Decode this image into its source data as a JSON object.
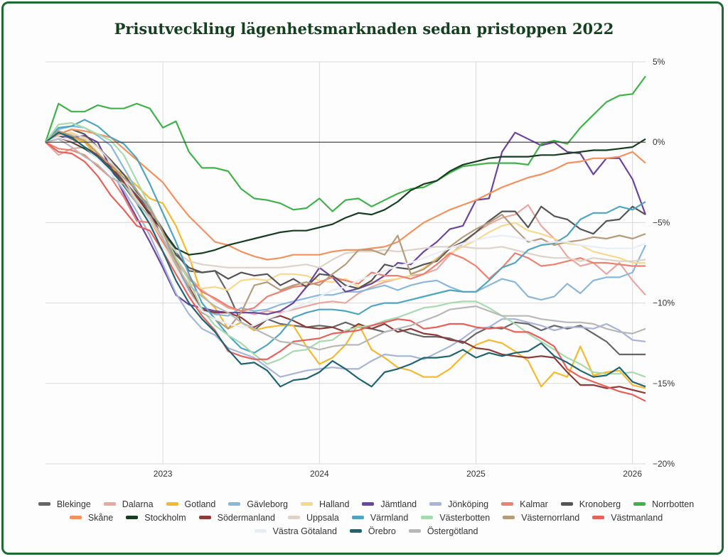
{
  "title": "Prisutveckling lägenhetsmarknaden sedan pristoppen 2022",
  "colors": {
    "frame": "#1e6b32",
    "title": "#14401f",
    "zeroline": "#333333",
    "grid": "#d9d9d9"
  },
  "chart_data": {
    "type": "line",
    "title": "Prisutveckling lägenhetsmarknaden sedan pristoppen 2022",
    "xlabel": "",
    "ylabel": "",
    "x_start": "2022-04",
    "x_end": "2026-02",
    "x_step": "month",
    "x_ticks": [
      "2023",
      "2024",
      "2025",
      "2026"
    ],
    "y_ticks": [
      "5%",
      "0%",
      "−5%",
      "−10%",
      "−15%",
      "−20%"
    ],
    "ylim": [
      -20,
      5
    ],
    "y_axis_side": "right",
    "grid": true,
    "legend_position": "bottom",
    "series": [
      {
        "name": "Blekinge",
        "color": "#666666",
        "values": [
          0,
          0.6,
          0.2,
          -0.3,
          -0.8,
          -1.5,
          -2.4,
          -3.3,
          -4.2,
          -5.4,
          -6.8,
          -8.0,
          -8.1,
          -8.0,
          -9.4,
          -11.2,
          -11.7,
          -11.0,
          -11.3,
          -11.4,
          -11.5,
          -11.4,
          -11.5,
          -11.2,
          -11.5,
          -11.6,
          -11.8,
          -11.6,
          -11.9,
          -12.1,
          -12.1,
          -12.2,
          -12.5,
          -11.9,
          -11.5,
          -11.6,
          -11.2,
          -11.3,
          -11.7,
          -11.4,
          -11.6,
          -11.4,
          -11.9,
          -12.4,
          -13.2,
          -13.2,
          -13.2
        ]
      },
      {
        "name": "Dalarna",
        "color": "#e8a8a0",
        "values": [
          0,
          -0.8,
          -0.4,
          -0.3,
          -0.8,
          -1.4,
          -2.2,
          -3.0,
          -4.2,
          -5.6,
          -7.2,
          -8.4,
          -9.2,
          -9.8,
          -10.3,
          -10.5,
          -10.7,
          -10.5,
          -10.6,
          -10.4,
          -10.2,
          -10.0,
          -9.9,
          -10.0,
          -9.4,
          -9.0,
          -8.7,
          -8.5,
          -8.3,
          -8.2,
          -7.9,
          -7.0,
          -6.3,
          -5.6,
          -5.1,
          -4.7,
          -4.5,
          -3.9,
          -5.2,
          -6.0,
          -7.1,
          -7.7,
          -7.5,
          -8.2,
          -7.5,
          -8.6,
          -9.5
        ]
      },
      {
        "name": "Gotland",
        "color": "#f5b82e",
        "values": [
          0,
          0.5,
          0.3,
          0.0,
          -0.9,
          -1.6,
          -2.0,
          -2.7,
          -3.5,
          -3.8,
          -5.2,
          -7.1,
          -9.5,
          -10.3,
          -11.6,
          -11.2,
          -11.7,
          -11.5,
          -11.4,
          -11.4,
          -12.7,
          -13.8,
          -13.4,
          -12.6,
          -11.3,
          -12.9,
          -13.4,
          -14.0,
          -14.2,
          -14.6,
          -14.6,
          -14.1,
          -13.3,
          -12.6,
          -12.3,
          -12.5,
          -13.0,
          -13.6,
          -15.2,
          -14.3,
          -14.6,
          -12.7,
          -14.5,
          -14.3,
          -14.2,
          -15.1,
          -15.3
        ]
      },
      {
        "name": "Gävleborg",
        "color": "#88b8dc",
        "values": [
          0,
          0.8,
          1.0,
          0.9,
          0.4,
          -0.2,
          -1.6,
          -3.0,
          -4.2,
          -5.6,
          -7.6,
          -9.2,
          -10.4,
          -10.7,
          -10.8,
          -10.3,
          -10.5,
          -10.4,
          -10.1,
          -9.9,
          -9.7,
          -9.5,
          -9.5,
          -9.3,
          -9.3,
          -9.1,
          -8.9,
          -9.2,
          -8.9,
          -8.7,
          -8.6,
          -9.0,
          -9.3,
          -9.3,
          -8.9,
          -8.5,
          -8.7,
          -9.6,
          -9.8,
          -9.6,
          -8.8,
          -9.4,
          -8.6,
          -8.4,
          -8.4,
          -8.1,
          -6.4
        ]
      },
      {
        "name": "Halland",
        "color": "#f7d98c",
        "values": [
          0,
          0.4,
          0.6,
          0.2,
          -0.6,
          -1.7,
          -2.6,
          -3.6,
          -4.8,
          -6.2,
          -7.8,
          -8.8,
          -9.1,
          -9.0,
          -9.2,
          -8.6,
          -8.5,
          -8.6,
          -8.2,
          -8.2,
          -8.3,
          -8.6,
          -8.7,
          -8.5,
          -9.0,
          -8.7,
          -8.6,
          -8.5,
          -8.3,
          -7.8,
          -7.2,
          -6.9,
          -6.5,
          -6.1,
          -5.6,
          -5.2,
          -5.0,
          -5.5,
          -5.7,
          -6.0,
          -6.3,
          -6.4,
          -6.8,
          -7.0,
          -7.2,
          -7.5,
          -7.5
        ]
      },
      {
        "name": "Jämtland",
        "color": "#6b45a0",
        "values": [
          0,
          0.4,
          0.3,
          0.4,
          0.0,
          -1.6,
          -3.2,
          -4.7,
          -6.2,
          -7.8,
          -9.5,
          -10.1,
          -10.3,
          -10.5,
          -10.6,
          -10.6,
          -10.6,
          -10.7,
          -10.5,
          -10.0,
          -9.0,
          -7.8,
          -8.4,
          -9.3,
          -9.1,
          -8.8,
          -8.3,
          -7.5,
          -7.6,
          -6.8,
          -6.2,
          -5.4,
          -5.2,
          -3.6,
          -3.5,
          -0.6,
          0.6,
          0.2,
          -0.2,
          0.0,
          -0.6,
          -0.7,
          -2.0,
          -1.0,
          -1.0,
          -2.3,
          -4.5
        ]
      },
      {
        "name": "Jönköping",
        "color": "#a8b4d8",
        "values": [
          0,
          0.3,
          0.1,
          -0.4,
          -1.0,
          -1.9,
          -3.0,
          -4.3,
          -5.8,
          -7.6,
          -9.4,
          -10.7,
          -11.6,
          -12.0,
          -12.8,
          -13.1,
          -13.4,
          -14.0,
          -14.6,
          -14.4,
          -14.2,
          -14.1,
          -14.0,
          -14.1,
          -14.1,
          -13.6,
          -13.2,
          -13.3,
          -13.3,
          -13.5,
          -13.1,
          -12.7,
          -12.2,
          -11.6,
          -11.5,
          -11.0,
          -11.0,
          -11.2,
          -11.4,
          -11.7,
          -11.5,
          -11.5,
          -11.6,
          -11.3,
          -11.7,
          -12.3,
          -12.4
        ]
      },
      {
        "name": "Kalmar",
        "color": "#ee8070",
        "values": [
          0,
          -0.4,
          -0.5,
          -0.8,
          -1.5,
          -2.2,
          -3.4,
          -4.9,
          -5.0,
          -6.2,
          -7.4,
          -8.5,
          -9.3,
          -9.7,
          -10.2,
          -10.5,
          -10.3,
          -9.6,
          -9.3,
          -9.0,
          -8.9,
          -8.7,
          -8.4,
          -8.6,
          -8.8,
          -8.1,
          -8.3,
          -8.3,
          -8.5,
          -8.2,
          -7.6,
          -6.9,
          -7.2,
          -7.7,
          -8.5,
          -7.8,
          -6.9,
          -7.2,
          -7.7,
          -7.6,
          -7.4,
          -7.2,
          -7.5,
          -7.5,
          -7.6,
          -7.7,
          -7.7
        ]
      },
      {
        "name": "Kronoberg",
        "color": "#555555",
        "values": [
          0,
          0.5,
          0.8,
          0.5,
          -0.3,
          -1.1,
          -2.0,
          -3.1,
          -4.0,
          -5.6,
          -7.0,
          -7.8,
          -8.1,
          -8.0,
          -8.5,
          -8.1,
          -8.3,
          -8.2,
          -8.9,
          -8.5,
          -9.0,
          -8.2,
          -8.3,
          -8.9,
          -9.1,
          -8.6,
          -7.6,
          -7.8,
          -7.9,
          -7.6,
          -7.4,
          -6.6,
          -6.2,
          -5.6,
          -4.9,
          -4.3,
          -4.3,
          -5.3,
          -4.0,
          -4.6,
          -4.8,
          -5.4,
          -5.7,
          -4.9,
          -4.8,
          -4.0,
          -4.5
        ]
      },
      {
        "name": "Norrbotten",
        "color": "#3fb34a",
        "values": [
          0,
          2.4,
          1.9,
          1.9,
          2.3,
          2.1,
          2.1,
          2.4,
          2.1,
          0.9,
          1.3,
          -0.6,
          -1.6,
          -1.6,
          -1.8,
          -2.9,
          -3.5,
          -3.6,
          -3.8,
          -4.2,
          -4.1,
          -3.5,
          -4.3,
          -3.6,
          -3.5,
          -4.0,
          -3.6,
          -3.2,
          -2.9,
          -2.8,
          -2.4,
          -1.9,
          -1.5,
          -1.4,
          -1.3,
          -1.3,
          -1.3,
          -1.4,
          -0.1,
          0.1,
          -0.1,
          0.9,
          1.7,
          2.5,
          2.9,
          3.0,
          4.1
        ]
      },
      {
        "name": "Skåne",
        "color": "#f4915c",
        "values": [
          0,
          0.5,
          0.8,
          0.7,
          0.5,
          0.3,
          -0.4,
          -1.1,
          -1.8,
          -2.5,
          -3.6,
          -4.6,
          -5.4,
          -6.2,
          -6.4,
          -6.8,
          -7.1,
          -7.3,
          -7.2,
          -7.0,
          -7.0,
          -7.0,
          -6.8,
          -6.7,
          -6.7,
          -6.6,
          -6.5,
          -6.2,
          -5.6,
          -5.0,
          -4.6,
          -4.2,
          -3.9,
          -3.6,
          -3.2,
          -2.8,
          -2.5,
          -2.2,
          -2.0,
          -1.7,
          -1.3,
          -1.2,
          -1.0,
          -1.0,
          -0.9,
          -0.6,
          -1.3
        ]
      },
      {
        "name": "Stockholm",
        "color": "#163d1f",
        "values": [
          0,
          0.4,
          0.0,
          -0.4,
          -0.9,
          -1.6,
          -2.5,
          -3.4,
          -4.5,
          -5.5,
          -6.6,
          -7.0,
          -6.9,
          -6.7,
          -6.4,
          -6.2,
          -6.0,
          -5.8,
          -5.6,
          -5.5,
          -5.5,
          -5.3,
          -5.1,
          -4.7,
          -4.4,
          -4.5,
          -4.2,
          -3.7,
          -3.0,
          -2.6,
          -2.4,
          -1.8,
          -1.4,
          -1.2,
          -1.0,
          -0.9,
          -0.9,
          -0.9,
          -0.8,
          -0.8,
          -0.7,
          -0.6,
          -0.5,
          -0.5,
          -0.4,
          -0.3,
          0.2
        ]
      },
      {
        "name": "Södermanland",
        "color": "#8c3a3a",
        "values": [
          0,
          0.3,
          0.0,
          -0.3,
          -0.8,
          -1.6,
          -2.5,
          -3.4,
          -4.4,
          -6.0,
          -7.6,
          -9.0,
          -10.4,
          -10.6,
          -10.6,
          -10.9,
          -11.5,
          -11.0,
          -10.8,
          -11.1,
          -11.5,
          -11.6,
          -11.5,
          -11.8,
          -11.3,
          -11.6,
          -11.3,
          -11.8,
          -11.6,
          -11.9,
          -12.0,
          -12.3,
          -12.4,
          -12.8,
          -12.9,
          -13.2,
          -13.3,
          -13.4,
          -13.3,
          -13.4,
          -14.3,
          -15.1,
          -15.1,
          -15.3,
          -15.2,
          -15.4,
          -15.6
        ]
      },
      {
        "name": "Uppsala",
        "color": "#ddd3c8",
        "values": [
          0,
          0.4,
          0.5,
          0.3,
          -0.3,
          -1.2,
          -2.3,
          -3.6,
          -4.8,
          -5.8,
          -6.8,
          -7.4,
          -7.6,
          -7.7,
          -7.8,
          -7.8,
          -7.8,
          -7.8,
          -7.8,
          -7.7,
          -7.6,
          -7.8,
          -7.3,
          -6.9,
          -6.8,
          -6.8,
          -6.7,
          -6.8,
          -6.7,
          -6.6,
          -6.5,
          -6.5,
          -6.5,
          -6.6,
          -6.6,
          -6.5,
          -6.7,
          -6.9,
          -7.1,
          -7.2,
          -7.2,
          -7.4,
          -7.2,
          -7.3,
          -7.4,
          -7.4,
          -7.3
        ]
      },
      {
        "name": "Värmland",
        "color": "#4ea5bf",
        "values": [
          0,
          0.9,
          1.0,
          1.4,
          1.0,
          0.3,
          -0.1,
          -1.0,
          -2.6,
          -4.4,
          -6.2,
          -8.2,
          -10.0,
          -11.0,
          -12.0,
          -12.8,
          -13.1,
          -12.6,
          -11.9,
          -10.9,
          -10.6,
          -10.4,
          -10.4,
          -10.5,
          -10.7,
          -10.2,
          -10.0,
          -10.0,
          -9.8,
          -9.6,
          -9.4,
          -9.2,
          -9.3,
          -9.3,
          -8.6,
          -7.8,
          -7.5,
          -6.7,
          -6.4,
          -6.3,
          -5.8,
          -4.8,
          -4.4,
          -4.4,
          -4.0,
          -4.2,
          -3.7
        ]
      },
      {
        "name": "Västerbotten",
        "color": "#a8dab0",
        "values": [
          0,
          1.1,
          1.2,
          0.9,
          0.5,
          0.1,
          -0.8,
          -2.4,
          -4.0,
          -5.6,
          -7.2,
          -8.6,
          -10.4,
          -11.4,
          -12.0,
          -12.5,
          -13.2,
          -13.8,
          -13.5,
          -13.0,
          -12.9,
          -12.4,
          -12.3,
          -11.7,
          -11.5,
          -11.4,
          -11.1,
          -10.9,
          -10.6,
          -10.3,
          -10.2,
          -10.0,
          -9.9,
          -9.9,
          -10.3,
          -10.8,
          -11.3,
          -11.9,
          -12.4,
          -12.9,
          -13.4,
          -13.8,
          -14.3,
          -14.4,
          -14.4,
          -14.3,
          -14.6
        ]
      },
      {
        "name": "Västernorrland",
        "color": "#b69c7a",
        "values": [
          0,
          0.7,
          0.4,
          0.1,
          -0.7,
          -1.4,
          -2.2,
          -3.0,
          -4.1,
          -5.6,
          -7.4,
          -9.1,
          -10.6,
          -11.0,
          -11.6,
          -10.6,
          -8.9,
          -8.7,
          -9.2,
          -8.9,
          -8.7,
          -8.9,
          -8.2,
          -7.6,
          -6.7,
          -6.7,
          -7.0,
          -5.8,
          -8.2,
          -7.9,
          -7.3,
          -6.5,
          -5.9,
          -5.4,
          -5.0,
          -4.5,
          -5.4,
          -6.2,
          -6.0,
          -6.4,
          -6.2,
          -6.1,
          -5.9,
          -6.0,
          -5.8,
          -6.0,
          -5.7
        ]
      },
      {
        "name": "Västmanland",
        "color": "#e8605a",
        "values": [
          0,
          -0.6,
          -0.7,
          -1.2,
          -2.1,
          -3.3,
          -4.2,
          -5.2,
          -5.5,
          -6.8,
          -8.2,
          -9.6,
          -10.8,
          -11.7,
          -13.0,
          -13.3,
          -13.5,
          -13.5,
          -13.0,
          -12.4,
          -12.3,
          -12.2,
          -11.9,
          -11.8,
          -11.7,
          -11.4,
          -11.2,
          -11.0,
          -11.1,
          -11.6,
          -11.5,
          -11.3,
          -11.3,
          -11.5,
          -11.6,
          -11.5,
          -11.8,
          -11.8,
          -12.2,
          -12.7,
          -14.1,
          -14.6,
          -14.9,
          -15.2,
          -15.5,
          -15.7,
          -16.1
        ]
      },
      {
        "name": "Västra Götaland",
        "color": "#e8eef8",
        "values": [
          0,
          0.3,
          0.1,
          -0.3,
          -1.0,
          -1.9,
          -2.8,
          -3.8,
          -5.0,
          -6.4,
          -7.9,
          -9.4,
          -10.5,
          -11.0,
          -11.3,
          -11.5,
          -11.4,
          -11.0,
          -10.7,
          -10.3,
          -10.0,
          -9.6,
          -9.2,
          -9.0,
          -8.6,
          -8.3,
          -8.0,
          -7.7,
          -7.5,
          -7.2,
          -6.9,
          -6.6,
          -6.3,
          -6.1,
          -5.9,
          -5.8,
          -5.9,
          -6.1,
          -6.3,
          -6.2,
          -6.2,
          -6.4,
          -6.5,
          -6.6,
          -6.6,
          -6.6,
          -6.3
        ]
      },
      {
        "name": "Örebro",
        "color": "#1f6472",
        "values": [
          0,
          0.6,
          0.3,
          -0.3,
          -0.9,
          -1.7,
          -2.7,
          -3.8,
          -5.1,
          -6.8,
          -8.6,
          -10.0,
          -11.0,
          -11.8,
          -12.9,
          -13.8,
          -13.7,
          -14.2,
          -15.2,
          -14.8,
          -14.7,
          -14.3,
          -13.6,
          -14.1,
          -14.7,
          -15.2,
          -14.3,
          -14.1,
          -13.8,
          -13.4,
          -13.4,
          -13.3,
          -12.9,
          -13.4,
          -13.1,
          -13.3,
          -13.1,
          -13.0,
          -12.5,
          -13.3,
          -13.7,
          -14.2,
          -14.6,
          -14.5,
          -14.0,
          -14.9,
          -15.2
        ]
      },
      {
        "name": "Östergötland",
        "color": "#b8b8b8",
        "values": [
          0,
          0.2,
          -0.3,
          -0.9,
          -1.4,
          -2.2,
          -2.6,
          -3.8,
          -4.6,
          -6.0,
          -7.6,
          -8.9,
          -9.6,
          -10.2,
          -10.6,
          -11.2,
          -11.6,
          -12.0,
          -12.4,
          -12.5,
          -12.7,
          -12.9,
          -12.7,
          -12.6,
          -12.6,
          -12.2,
          -11.8,
          -11.6,
          -11.4,
          -11.1,
          -10.8,
          -10.4,
          -10.3,
          -10.2,
          -10.5,
          -10.8,
          -10.8,
          -10.8,
          -11.0,
          -11.1,
          -11.2,
          -11.2,
          -11.3,
          -11.6,
          -11.8,
          -11.9,
          -11.6
        ]
      }
    ]
  },
  "legend": {
    "rows": [
      [
        "Blekinge",
        "Dalarna",
        "Gotland",
        "Gävleborg",
        "Halland",
        "Jämtland",
        "Jönköping",
        "Kalmar",
        "Kronoberg",
        "Norrbotten"
      ],
      [
        "Skåne",
        "Stockholm",
        "Södermanland",
        "Uppsala",
        "Värmland",
        "Västerbotten",
        "Västernorrland",
        "Västmanland"
      ],
      [
        "Västra Götaland",
        "Örebro",
        "Östergötland"
      ]
    ]
  }
}
